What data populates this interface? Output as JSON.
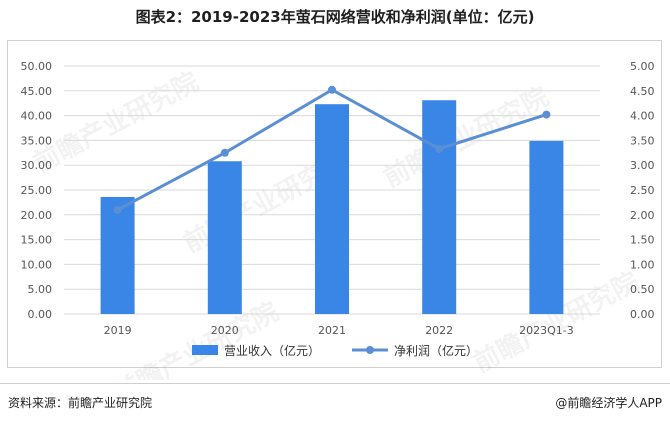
{
  "title": "图表2：2019-2023年萤石网络营收和净利润(单位：亿元)",
  "source_left": "资料来源：前瞻产业研究院",
  "source_right": "@前瞻经济学人APP",
  "watermark": "前瞻产业研究院",
  "colors": {
    "bar": "#3a86e6",
    "line": "#5b8fd3",
    "grid": "#d9d9d9",
    "axis_text": "#555555"
  },
  "chart_data": {
    "type": "bar",
    "categories": [
      "2019",
      "2020",
      "2021",
      "2022",
      "2023Q1-3"
    ],
    "series": [
      {
        "name": "营业收入（亿元）",
        "type": "bar",
        "axis": "left",
        "values": [
          23.6,
          30.8,
          42.3,
          43.1,
          34.9
        ]
      },
      {
        "name": "净利润（亿元）",
        "type": "line",
        "axis": "right",
        "values": [
          2.1,
          3.25,
          4.52,
          3.33,
          4.02
        ]
      }
    ],
    "y_left": {
      "min": 0,
      "max": 50,
      "step": 5,
      "ticks": [
        "0.00",
        "5.00",
        "10.00",
        "15.00",
        "20.00",
        "25.00",
        "30.00",
        "35.00",
        "40.00",
        "45.00",
        "50.00"
      ]
    },
    "y_right": {
      "min": 0,
      "max": 5,
      "step": 0.5,
      "ticks": [
        "0.00",
        "0.50",
        "1.00",
        "1.50",
        "2.00",
        "2.50",
        "3.00",
        "3.50",
        "4.00",
        "4.50",
        "5.00"
      ]
    },
    "grid": true,
    "legend": "bottom"
  }
}
